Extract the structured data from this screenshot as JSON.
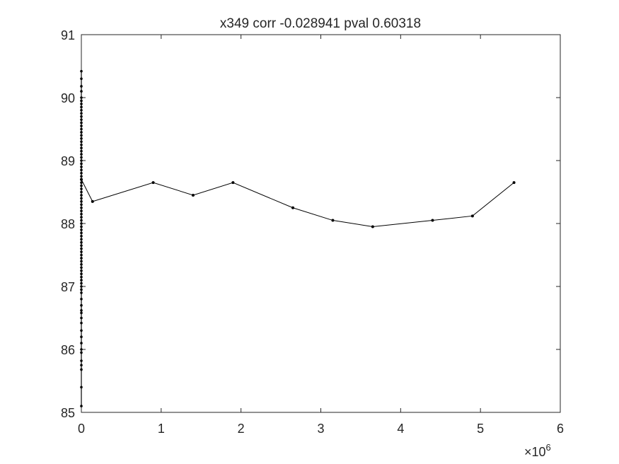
{
  "chart_data": {
    "type": "line",
    "title": "x349 corr -0.028941 pval 0.60318",
    "xlabel": "",
    "ylabel": "",
    "xlim": [
      0,
      6
    ],
    "ylim": [
      85,
      91
    ],
    "x_ticks": [
      "0",
      "1",
      "2",
      "3",
      "4",
      "5",
      "6"
    ],
    "y_ticks": [
      "85",
      "86",
      "87",
      "88",
      "89",
      "90",
      "91"
    ],
    "x_exponent_label": "×10",
    "x_exponent_power": "6",
    "x_scale": 1000000,
    "grid": false,
    "line_color": "#000000",
    "marker": "dot",
    "clustered_points": {
      "x": 0,
      "y_values": [
        85.1,
        85.4,
        85.68,
        85.75,
        85.82,
        85.95,
        86.0,
        86.1,
        86.2,
        86.3,
        86.42,
        86.5,
        86.58,
        86.62,
        86.7,
        86.8,
        86.9,
        86.95,
        87.0,
        87.05,
        87.1,
        87.15,
        87.2,
        87.25,
        87.3,
        87.35,
        87.4,
        87.45,
        87.5,
        87.55,
        87.6,
        87.65,
        87.7,
        87.75,
        87.8,
        87.85,
        87.9,
        87.95,
        88.0,
        88.05,
        88.1,
        88.15,
        88.2,
        88.25,
        88.3,
        88.35,
        88.4,
        88.45,
        88.5,
        88.55,
        88.6,
        88.65,
        88.7,
        88.75,
        88.8,
        88.85,
        88.9,
        88.95,
        89.0,
        89.05,
        89.1,
        89.15,
        89.2,
        89.25,
        89.3,
        89.35,
        89.4,
        89.45,
        89.5,
        89.55,
        89.6,
        89.65,
        89.7,
        89.75,
        89.8,
        89.85,
        89.9,
        89.95,
        90.0,
        90.1,
        90.18,
        90.3,
        90.42
      ]
    },
    "series": [
      {
        "x": [
          0,
          140000,
          900000,
          1400000,
          1900000,
          2650000,
          3150000,
          3650000,
          4400000,
          4900000,
          5420000
        ],
        "y": [
          88.7,
          88.35,
          88.65,
          88.45,
          88.65,
          88.25,
          88.05,
          87.95,
          88.05,
          88.12,
          88.65
        ]
      }
    ]
  }
}
